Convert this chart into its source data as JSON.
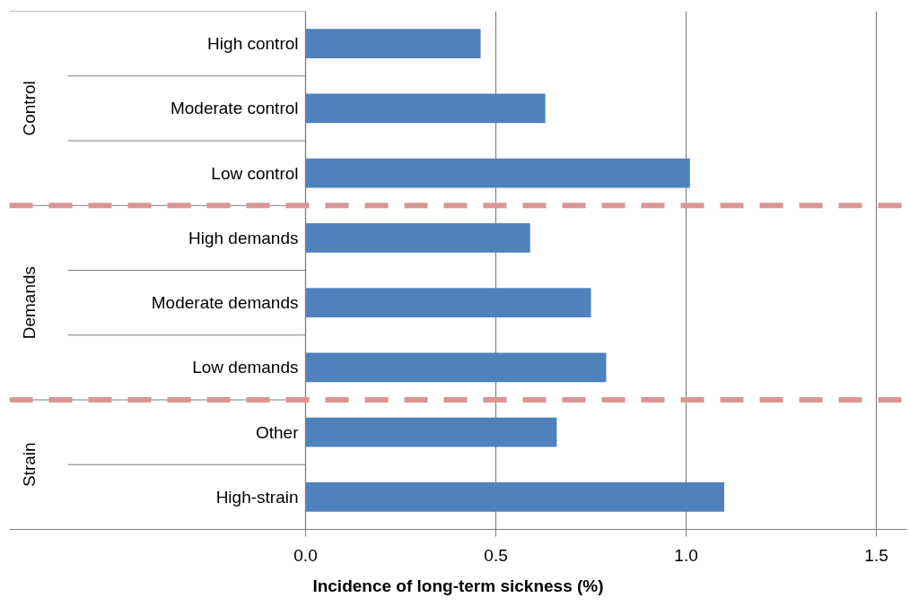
{
  "chart_data": {
    "type": "bar",
    "orientation": "horizontal",
    "xlabel": "Incidence of long-term sickness (%)",
    "categories": [
      "High control",
      "Moderate control",
      "Low control",
      "High demands",
      "Moderate demands",
      "Low demands",
      "Other",
      "High-strain"
    ],
    "values": [
      0.46,
      0.63,
      1.01,
      0.59,
      0.75,
      0.79,
      0.66,
      1.1
    ],
    "color": "#4f81bd",
    "xlim": [
      0,
      1.58
    ],
    "xticks": [
      {
        "value": 0,
        "label": "0.0"
      },
      {
        "value": 0.5,
        "label": "0.5"
      },
      {
        "value": 1,
        "label": "1.0"
      },
      {
        "value": 1.5,
        "label": "1.5"
      }
    ],
    "grid": "x",
    "annotations": [
      "Control",
      "Demands",
      "Strain"
    ]
  }
}
